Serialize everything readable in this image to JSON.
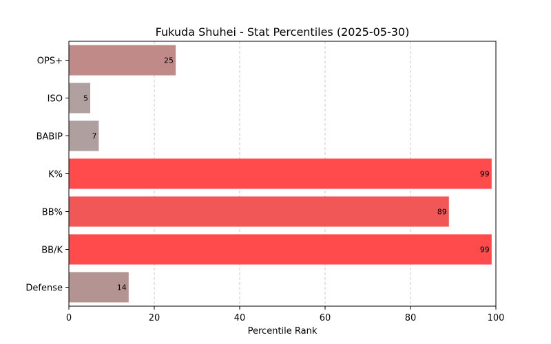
{
  "chart_data": {
    "type": "bar",
    "orientation": "horizontal",
    "title": "Fukuda Shuhei - Stat Percentiles (2025-05-30)",
    "xlabel": "Percentile Rank",
    "ylabel": "",
    "xlim": [
      0,
      100
    ],
    "xticks": [
      0,
      20,
      40,
      60,
      80,
      100
    ],
    "grid": "x-dashed",
    "categories": [
      "OPS+",
      "ISO",
      "BABIP",
      "K%",
      "BB%",
      "BB/K",
      "Defense"
    ],
    "values": [
      25,
      5,
      7,
      99,
      89,
      99,
      14
    ],
    "bar_colors": [
      "#c08a88",
      "#b0a09f",
      "#b09f9f",
      "#ff4b4b",
      "#f15756",
      "#ff4b4b",
      "#b49493"
    ]
  }
}
